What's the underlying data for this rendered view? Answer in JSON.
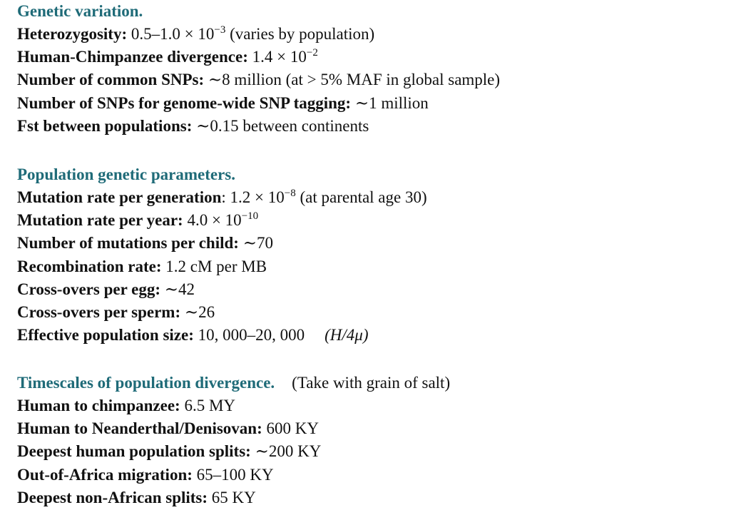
{
  "sections": [
    {
      "title": "Genetic variation.",
      "note": "",
      "rows": [
        {
          "label": "Heterozygosity: ",
          "value": "0.5–1.0 × 10",
          "sup": "−3",
          "after": " (varies by population)"
        },
        {
          "label": "Human-Chimpanzee divergence: ",
          "value": "1.4 × 10",
          "sup": "−2",
          "after": ""
        },
        {
          "label": "Number of common SNPs: ",
          "value": "∼8 million (at > 5% MAF in global sample)",
          "sup": "",
          "after": ""
        },
        {
          "label": "Number of SNPs for genome-wide SNP tagging: ",
          "value": "∼1 million",
          "sup": "",
          "after": ""
        },
        {
          "label": "Fst between populations: ",
          "value": "∼0.15 between continents",
          "sup": "",
          "after": ""
        }
      ]
    },
    {
      "title": "Population genetic parameters.",
      "note": "",
      "rows": [
        {
          "label": "Mutation rate per generation",
          "value": ": 1.2 × 10",
          "sup": "−8",
          "after": " (at parental age 30)"
        },
        {
          "label": "Mutation rate per year: ",
          "value": "4.0 × 10",
          "sup": "−10",
          "after": ""
        },
        {
          "label": "Number of mutations per child: ",
          "value": "∼70",
          "sup": "",
          "after": ""
        },
        {
          "label": "Recombination rate: ",
          "value": "1.2 cM per MB",
          "sup": "",
          "after": ""
        },
        {
          "label": "Cross-overs per egg: ",
          "value": "∼42",
          "sup": "",
          "after": ""
        },
        {
          "label": "Cross-overs per sperm: ",
          "value": "∼26",
          "sup": "",
          "after": ""
        },
        {
          "label": "Effective population size: ",
          "value": "10, 000–20, 000",
          "sup": "",
          "after": "",
          "extra": "(H/4μ)"
        }
      ]
    },
    {
      "title": "Timescales of population divergence.",
      "note": "(Take with grain of salt)",
      "rows": [
        {
          "label": "Human to chimpanzee: ",
          "value": "6.5 MY",
          "sup": "",
          "after": ""
        },
        {
          "label": "Human to Neanderthal/Denisovan: ",
          "value": "600 KY",
          "sup": "",
          "after": ""
        },
        {
          "label": "Deepest human population splits: ",
          "value": "∼200 KY",
          "sup": "",
          "after": ""
        },
        {
          "label": "Out-of-Africa migration: ",
          "value": "65–100 KY",
          "sup": "",
          "after": ""
        },
        {
          "label": "Deepest non-African splits: ",
          "value": "65 KY",
          "sup": "",
          "after": ""
        }
      ]
    }
  ],
  "colors": {
    "heading": "#1f6b78",
    "text": "#111111"
  }
}
